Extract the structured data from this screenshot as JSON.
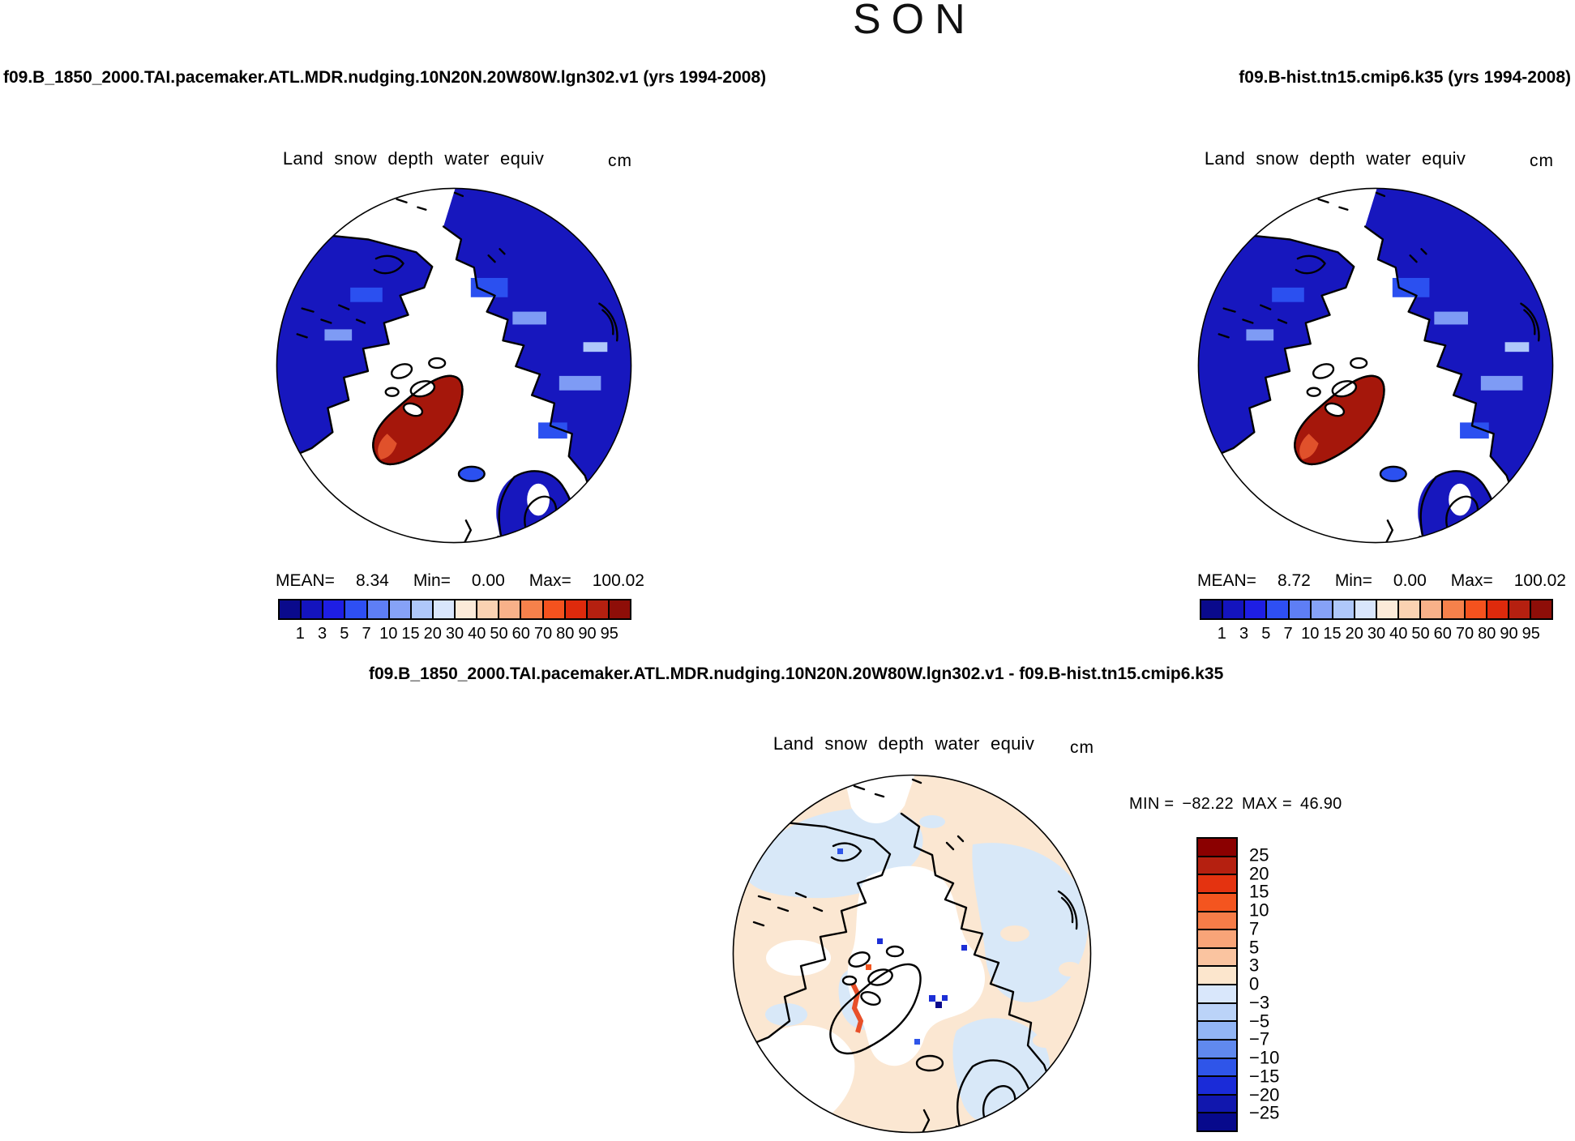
{
  "figure": {
    "season_title": "SON"
  },
  "panels": {
    "left": {
      "run_title": "f09.B_1850_2000.TAI.pacemaker.ATL.MDR.nudging.10N20N.20W80W.lgn302.v1 (yrs 1994-2008)",
      "map_title": "Land snow depth water equiv",
      "units": "cm",
      "stats": {
        "mean_label": "MEAN=",
        "mean": "8.34",
        "min_label": "Min=",
        "min": "0.00",
        "max_label": "Max=",
        "max": "100.02"
      }
    },
    "right": {
      "run_title": "f09.B-hist.tn15.cmip6.k35 (yrs 1994-2008)",
      "map_title": "Land snow depth water equiv",
      "units": "cm",
      "stats": {
        "mean_label": "MEAN=",
        "mean": "8.72",
        "min_label": "Min=",
        "min": "0.00",
        "max_label": "Max=",
        "max": "100.02"
      }
    },
    "diff": {
      "run_title": "f09.B_1850_2000.TAI.pacemaker.ATL.MDR.nudging.10N20N.20W80W.lgn302.v1 - f09.B-hist.tn15.cmip6.k35",
      "map_title": "Land snow depth water equiv",
      "units": "cm",
      "minmax": {
        "min_label": "MIN =",
        "min": "−82.22",
        "max_label": "MAX =",
        "max": "46.90"
      }
    }
  },
  "snow_colorbar": {
    "tick_labels": [
      "1",
      "3",
      "5",
      "7",
      "10",
      "15",
      "20",
      "30",
      "40",
      "50",
      "60",
      "70",
      "80",
      "90",
      "95"
    ],
    "colors": [
      "#0A0A8C",
      "#1414BE",
      "#1E1EE4",
      "#2E4FF3",
      "#5E7EF5",
      "#86A2F7",
      "#AFC8FA",
      "#D9E6FC",
      "#FCEBD9",
      "#FAD2B2",
      "#F8B189",
      "#F6814B",
      "#F4521E",
      "#DE2A0C",
      "#B52010",
      "#8E0E08"
    ]
  },
  "diff_colorbar": {
    "tick_labels": [
      "25",
      "20",
      "15",
      "10",
      "7",
      "5",
      "3",
      "0",
      "−3",
      "−5",
      "−7",
      "−10",
      "−15",
      "−20",
      "−25"
    ],
    "colors": [
      "#8B0000",
      "#B52010",
      "#E43310",
      "#F4551F",
      "#F67C48",
      "#F8A478",
      "#FAC4A0",
      "#FCE6CD",
      "#D9E7FB",
      "#BBD3F8",
      "#92B5F4",
      "#6089EE",
      "#2F55E9",
      "#1A2BD8",
      "#1117AE",
      "#07098C"
    ]
  },
  "map_colors": {
    "shallow_snow_blue": "#1717BE",
    "mid_snow_blue": "#2B50F0",
    "light_snow_blue": "#7E9BF5",
    "deep_snow_red": "#A5170B",
    "snow_fringe_orange": "#E0512B",
    "diff_positive_peach": "#FBE7D2",
    "diff_negative_blue": "#D8E8F8",
    "coastline_black": "#000000",
    "no_data_white": "#FFFFFF"
  },
  "chart_data": [
    {
      "type": "heatmap",
      "projection": "north-polar-stereographic-map",
      "title": "Land snow depth water equiv",
      "units": "cm",
      "season": "SON",
      "run": "f09.B_1850_2000.TAI.pacemaker.ATL.MDR.nudging.10N20N.20W80W.lgn302.v1 (yrs 1994-2008)",
      "mean": 8.34,
      "min": 0.0,
      "max": 100.02,
      "levels": [
        1,
        3,
        5,
        7,
        10,
        15,
        20,
        30,
        40,
        50,
        60,
        70,
        80,
        90,
        95
      ],
      "legend_position": "bottom"
    },
    {
      "type": "heatmap",
      "projection": "north-polar-stereographic-map",
      "title": "Land snow depth water equiv",
      "units": "cm",
      "season": "SON",
      "run": "f09.B-hist.tn15.cmip6.k35 (yrs 1994-2008)",
      "mean": 8.72,
      "min": 0.0,
      "max": 100.02,
      "levels": [
        1,
        3,
        5,
        7,
        10,
        15,
        20,
        30,
        40,
        50,
        60,
        70,
        80,
        90,
        95
      ],
      "legend_position": "bottom"
    },
    {
      "type": "heatmap",
      "projection": "north-polar-stereographic-map",
      "title": "Land snow depth water equiv",
      "units": "cm",
      "season": "SON",
      "run": "f09.B_1850_2000.TAI.pacemaker.ATL.MDR.nudging.10N20N.20W80W.lgn302.v1 - f09.B-hist.tn15.cmip6.k35",
      "min": -82.22,
      "max": 46.9,
      "levels": [
        -25,
        -20,
        -15,
        -10,
        -7,
        -5,
        -3,
        0,
        3,
        5,
        7,
        10,
        15,
        20,
        25
      ],
      "legend_position": "right"
    }
  ]
}
